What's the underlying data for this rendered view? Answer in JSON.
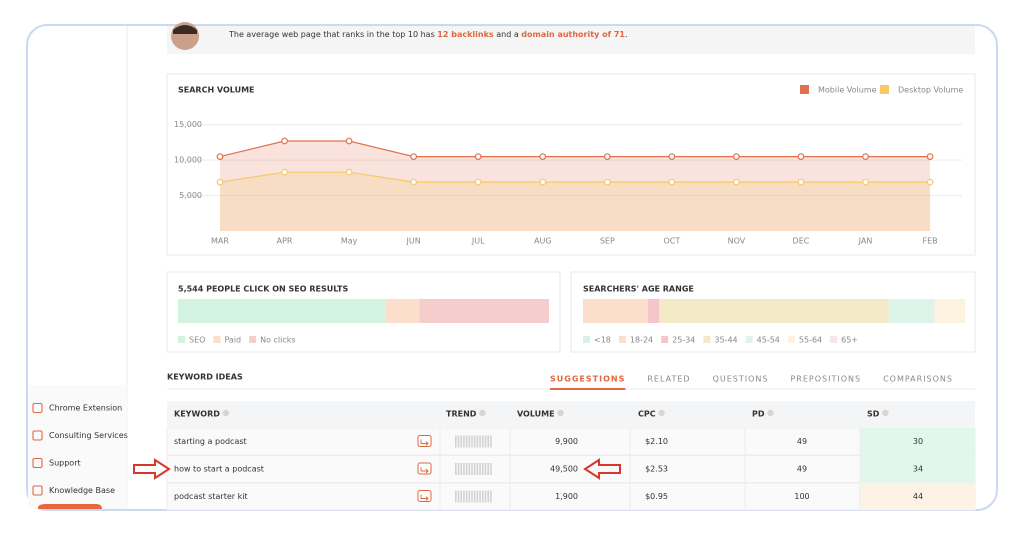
{
  "header": {
    "text": "The average web page that ranks in the top 10 has",
    "backlinks": "12 backlinks",
    "middle": "and a",
    "authority": "domain authority of 71",
    "end": "."
  },
  "chart_data": [
    {
      "type": "line",
      "title": "SEARCH VOLUME",
      "categories": [
        "MAR",
        "APR",
        "May",
        "JUN",
        "JUL",
        "AUG",
        "SEP",
        "OCT",
        "NOV",
        "DEC",
        "JAN",
        "FEB"
      ],
      "series": [
        {
          "name": "Mobile Volume",
          "color": "#e0714f",
          "values": [
            10500,
            12700,
            12700,
            10500,
            10500,
            10500,
            10500,
            10500,
            10500,
            10500,
            10500,
            10500
          ]
        },
        {
          "name": "Desktop Volume",
          "color": "#f5c96a",
          "values": [
            6900,
            8300,
            8300,
            6900,
            6900,
            6900,
            6900,
            6900,
            6900,
            6900,
            6900,
            6900
          ]
        }
      ],
      "ylim": [
        0,
        17500
      ],
      "yticks": [
        {
          "value": 5000,
          "label": "5,000"
        },
        {
          "value": 10000,
          "label": "10,000"
        },
        {
          "value": 15000,
          "label": "15,000"
        }
      ],
      "grid": true,
      "legend": "top-right"
    },
    {
      "type": "stacked-bar",
      "title": "5,544 PEOPLE CLICK ON SEO RESULTS",
      "series": [
        {
          "name": "SEO",
          "color": "#d3f3e0",
          "values": [
            56
          ]
        },
        {
          "name": "Paid",
          "color": "#fbdfca",
          "values": [
            9
          ]
        },
        {
          "name": "No clicks",
          "color": "#f6cdcd",
          "values": [
            35
          ]
        }
      ]
    },
    {
      "type": "stacked-bar",
      "title": "SEARCHERS' AGE RANGE",
      "series": [
        {
          "name": "<18",
          "color": "#d6f2e4",
          "values": [
            0
          ]
        },
        {
          "name": "18-24",
          "color": "#fbdfcc",
          "values": [
            17
          ]
        },
        {
          "name": "25-34",
          "color": "#f4c6cc",
          "values": [
            3
          ]
        },
        {
          "name": "35-44",
          "color": "#f5eac7",
          "values": [
            60
          ]
        },
        {
          "name": "45-54",
          "color": "#dcf4ea",
          "values": [
            12
          ]
        },
        {
          "name": "55-64",
          "color": "#fdf1e0",
          "values": [
            8
          ]
        },
        {
          "name": "65+",
          "color": "#fbe3ea",
          "values": [
            0
          ]
        }
      ]
    }
  ],
  "keyword_ideas": {
    "title": "KEYWORD IDEAS",
    "tabs": [
      "SUGGESTIONS",
      "RELATED",
      "QUESTIONS",
      "PREPOSITIONS",
      "COMPARISONS"
    ],
    "columns": [
      "KEYWORD",
      "TREND",
      "VOLUME",
      "CPC",
      "PD",
      "SD"
    ],
    "rows": [
      {
        "keyword": "starting a podcast",
        "volume": "9,900",
        "cpc": "$2.10",
        "pd": 49,
        "sd": 30,
        "sd_color": "#e2f7eb"
      },
      {
        "keyword": "how to start a podcast",
        "volume": "49,500",
        "cpc": "$2.53",
        "pd": 49,
        "sd": 34,
        "sd_color": "#e2f7eb"
      },
      {
        "keyword": "podcast starter kit",
        "volume": "1,900",
        "cpc": "$0.95",
        "pd": 100,
        "sd": 44,
        "sd_color": "#fdf3e4"
      }
    ]
  },
  "sidebar": {
    "items": [
      "Chrome Extension",
      "Consulting Services",
      "Support",
      "Knowledge Base"
    ]
  }
}
